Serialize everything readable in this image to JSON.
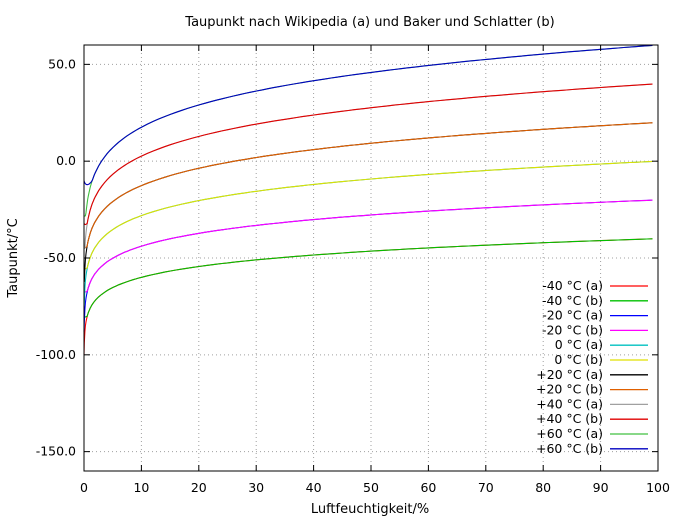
{
  "chart_data": {
    "type": "line",
    "title": "Taupunkt nach Wikipedia (a) und Baker und Schlatter (b)",
    "xlabel": "Luftfeuchtigkeit/%",
    "ylabel": "Taupunkt/°C",
    "xlim": [
      0,
      100
    ],
    "ylim": [
      -160,
      60
    ],
    "xticks": [
      "0",
      "10",
      "20",
      "30",
      "40",
      "50",
      "60",
      "70",
      "80",
      "90",
      "100"
    ],
    "yticks": [
      "50.0",
      "0.0",
      "-50.0",
      "-100.0",
      "-150.0"
    ],
    "grid": true,
    "legend_position": "bottom-right",
    "series": [
      {
        "name": "-40 °C (a)",
        "color": "#ff0000",
        "temp": -40,
        "values": [
          [
            0.1,
            -100
          ],
          [
            1,
            -72
          ],
          [
            5,
            -60.5
          ],
          [
            10,
            -56
          ],
          [
            20,
            -51.5
          ],
          [
            30,
            -48.6
          ],
          [
            50,
            -45.3
          ],
          [
            70,
            -42.8
          ],
          [
            100,
            -40
          ]
        ]
      },
      {
        "name": "-40 °C (b)",
        "color": "#00c000",
        "temp": -40,
        "values": [
          [
            0.1,
            -80
          ],
          [
            1,
            -72
          ],
          [
            5,
            -60.5
          ],
          [
            10,
            -56
          ],
          [
            20,
            -51.5
          ],
          [
            30,
            -48.6
          ],
          [
            50,
            -45.3
          ],
          [
            70,
            -42.8
          ],
          [
            100,
            -40
          ]
        ]
      },
      {
        "name": "-20 °C (a)",
        "color": "#0000ff",
        "temp": -20,
        "values": [
          [
            0.1,
            -88
          ],
          [
            1,
            -58
          ],
          [
            5,
            -44
          ],
          [
            10,
            -37.6
          ],
          [
            20,
            -31.3
          ],
          [
            30,
            -27.5
          ],
          [
            50,
            -22.8
          ],
          [
            70,
            -20
          ],
          [
            100,
            -20
          ]
        ]
      },
      {
        "name": "-20 °C (b)",
        "color": "#ff00ff",
        "temp": -20,
        "values": [
          [
            0.1,
            -67
          ],
          [
            1,
            -58
          ],
          [
            5,
            -44
          ],
          [
            10,
            -37.6
          ],
          [
            20,
            -31.3
          ],
          [
            30,
            -27.5
          ],
          [
            50,
            -22.8
          ],
          [
            70,
            -20
          ],
          [
            100,
            -20
          ]
        ]
      },
      {
        "name": "0 °C (a)",
        "color": "#00c0c0",
        "temp": 0,
        "values": [
          [
            0.1,
            -75
          ],
          [
            1,
            -48
          ],
          [
            5,
            -28.5
          ],
          [
            10,
            -21
          ],
          [
            20,
            -13
          ],
          [
            30,
            -8.5
          ],
          [
            50,
            -3.5
          ],
          [
            70,
            -1
          ],
          [
            100,
            0
          ]
        ]
      },
      {
        "name": "0 °C (b)",
        "color": "#e0e000",
        "temp": 0,
        "values": [
          [
            0.1,
            -55
          ],
          [
            1,
            -48
          ],
          [
            5,
            -28.5
          ],
          [
            10,
            -21
          ],
          [
            20,
            -13
          ],
          [
            30,
            -8.5
          ],
          [
            50,
            -3.5
          ],
          [
            70,
            -1
          ],
          [
            100,
            0
          ]
        ]
      },
      {
        "name": "+20 °C (a)",
        "color": "#000000",
        "temp": 20,
        "values": [
          [
            0.1,
            -62
          ],
          [
            1,
            -40
          ],
          [
            5,
            -16
          ],
          [
            10,
            -5
          ],
          [
            20,
            1
          ],
          [
            30,
            4
          ],
          [
            50,
            9.3
          ],
          [
            70,
            14.4
          ],
          [
            100,
            20
          ]
        ]
      },
      {
        "name": "+20 °C (b)",
        "color": "#e06000",
        "temp": 20,
        "values": [
          [
            0.1,
            -44
          ],
          [
            1,
            -40
          ],
          [
            5,
            -16
          ],
          [
            10,
            -5
          ],
          [
            20,
            1
          ],
          [
            30,
            4
          ],
          [
            50,
            9.3
          ],
          [
            70,
            14.4
          ],
          [
            100,
            20
          ]
        ]
      },
      {
        "name": "+40 °C (a)",
        "color": "#a0a0a0",
        "temp": 40,
        "values": [
          [
            0.1,
            -45
          ],
          [
            1,
            -20
          ],
          [
            5,
            -4
          ],
          [
            10,
            3
          ],
          [
            20,
            13
          ],
          [
            30,
            19.5
          ],
          [
            50,
            27.5
          ],
          [
            70,
            33.5
          ],
          [
            100,
            40
          ]
        ]
      },
      {
        "name": "+40 °C (b)",
        "color": "#e00000",
        "temp": 40,
        "values": [
          [
            0.1,
            -32
          ],
          [
            1,
            -20
          ],
          [
            5,
            -4
          ],
          [
            10,
            3
          ],
          [
            20,
            13
          ],
          [
            30,
            19.5
          ],
          [
            50,
            27.5
          ],
          [
            70,
            33.5
          ],
          [
            100,
            40
          ]
        ]
      },
      {
        "name": "+60 °C (a)",
        "color": "#40c040",
        "temp": 60,
        "values": [
          [
            0.1,
            -28
          ],
          [
            1,
            -18
          ],
          [
            5,
            0
          ],
          [
            10,
            17
          ],
          [
            20,
            28
          ],
          [
            30,
            35
          ],
          [
            50,
            45.5
          ],
          [
            70,
            52
          ],
          [
            100,
            60
          ]
        ]
      },
      {
        "name": "+60 °C (b)",
        "color": "#0000c0",
        "temp": 60,
        "values": [
          [
            0.1,
            -10
          ],
          [
            1,
            -8
          ],
          [
            5,
            8
          ],
          [
            10,
            17
          ],
          [
            20,
            28
          ],
          [
            30,
            35
          ],
          [
            50,
            45.5
          ],
          [
            70,
            52
          ],
          [
            100,
            60
          ]
        ]
      }
    ]
  }
}
